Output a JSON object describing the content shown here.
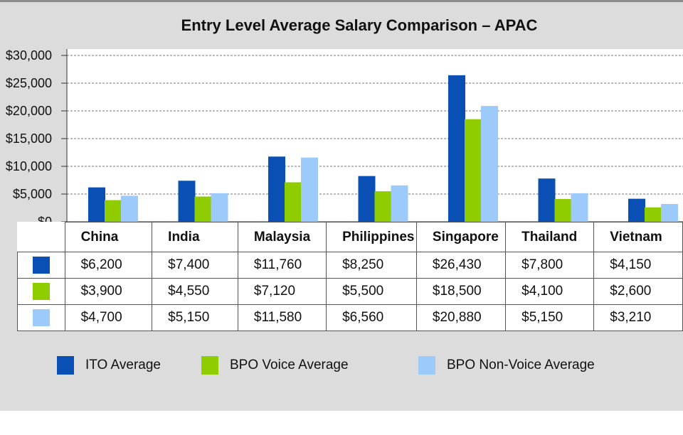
{
  "chart_data": {
    "type": "bar",
    "title": "Entry Level Average Salary Comparison – APAC",
    "categories": [
      "China",
      "India",
      "Malaysia",
      "Philippines",
      "Singapore",
      "Thailand",
      "Vietnam"
    ],
    "series": [
      {
        "name": "ITO Average",
        "color": "#0a50b4",
        "values": [
          6200,
          7400,
          11760,
          8250,
          26430,
          7800,
          4150
        ],
        "labels": [
          "$6,200",
          "$7,400",
          "$11,760",
          "$8,250",
          "$26,430",
          "$7,800",
          "$4,150"
        ]
      },
      {
        "name": "BPO Voice Average",
        "color": "#8fcc00",
        "values": [
          3900,
          4550,
          7120,
          5500,
          18500,
          4100,
          2600
        ],
        "labels": [
          "$3,900",
          "$4,550",
          "$7,120",
          "$5,500",
          "$18,500",
          "$4,100",
          "$2,600"
        ]
      },
      {
        "name": "BPO Non-Voice Average",
        "color": "#9ccafa",
        "values": [
          4700,
          5150,
          11580,
          6560,
          20880,
          5150,
          3210
        ],
        "labels": [
          "$4,700",
          "$5,150",
          "$11,580",
          "$6,560",
          "$20,880",
          "$5,150",
          "$3,210"
        ]
      }
    ],
    "ylim": [
      0,
      30000
    ],
    "yticks": [
      {
        "value": 30000,
        "label": "$30,000"
      },
      {
        "value": 25000,
        "label": "$25,000"
      },
      {
        "value": 20000,
        "label": "$20,000"
      },
      {
        "value": 15000,
        "label": "$15,000"
      },
      {
        "value": 10000,
        "label": "$10,000"
      },
      {
        "value": 5000,
        "label": "$5,000"
      },
      {
        "value": 0,
        "label": "$0"
      }
    ],
    "grid": true,
    "legend_position": "bottom",
    "data_table": true
  }
}
